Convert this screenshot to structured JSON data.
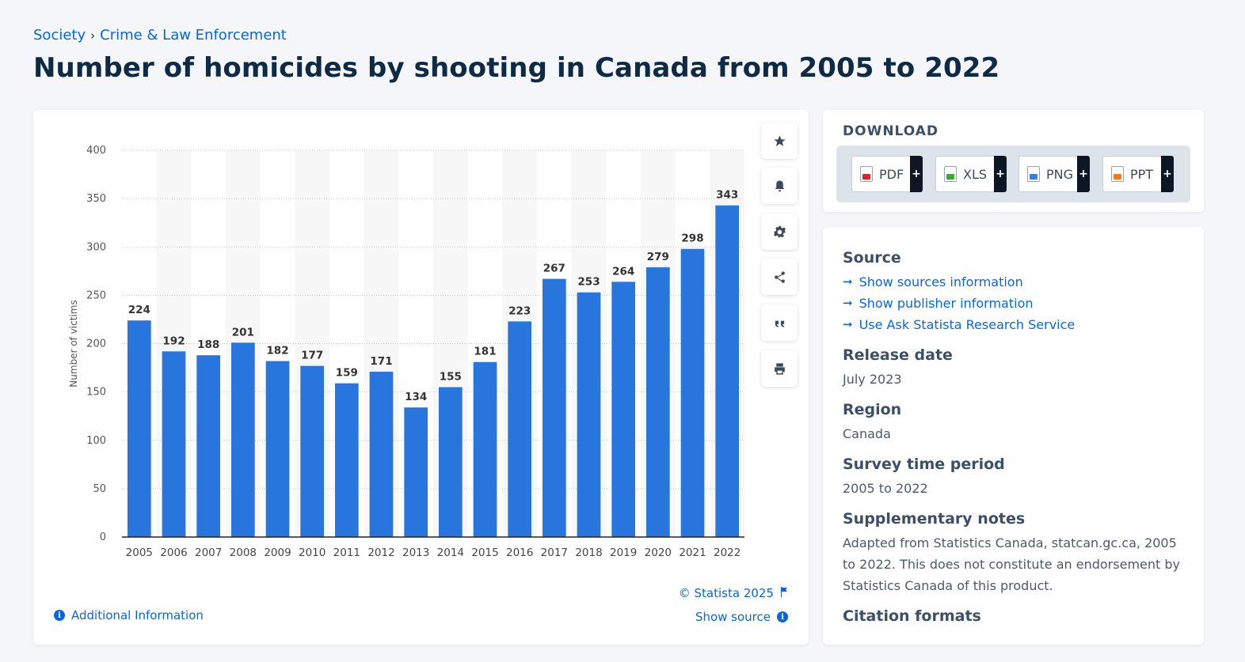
{
  "breadcrumb": {
    "items": [
      "Society",
      "Crime & Law Enforcement"
    ],
    "separator": "›"
  },
  "page_title": "Number of homicides by shooting in Canada from 2005 to 2022",
  "chart_data": {
    "type": "bar",
    "categories": [
      "2005",
      "2006",
      "2007",
      "2008",
      "2009",
      "2010",
      "2011",
      "2012",
      "2013",
      "2014",
      "2015",
      "2016",
      "2017",
      "2018",
      "2019",
      "2020",
      "2021",
      "2022"
    ],
    "values": [
      224,
      192,
      188,
      201,
      182,
      177,
      159,
      171,
      134,
      155,
      181,
      223,
      267,
      253,
      264,
      279,
      298,
      343
    ],
    "ylabel": "Number of victims",
    "xlabel": "",
    "ylim": [
      0,
      400
    ],
    "yticks": [
      0,
      50,
      100,
      150,
      200,
      250,
      300,
      350,
      400
    ],
    "grid": true,
    "color": "#2876dd"
  },
  "chart_footer": {
    "copyright": "© Statista 2025",
    "show_source": "Show source",
    "additional_info": "Additional Information"
  },
  "toolbar": [
    "star-icon",
    "bell-icon",
    "gear-icon",
    "share-icon",
    "quote-icon",
    "print-icon"
  ],
  "download": {
    "heading": "DOWNLOAD",
    "buttons": [
      {
        "label": "PDF",
        "plus": "+",
        "color": "#d9252a"
      },
      {
        "label": "XLS",
        "plus": "+",
        "color": "#3aa63c"
      },
      {
        "label": "PNG",
        "plus": "+",
        "color": "#3b7dd8"
      },
      {
        "label": "PPT",
        "plus": "+",
        "color": "#f07c1f"
      }
    ]
  },
  "info": {
    "source_heading": "Source",
    "source_links": [
      "Show sources information",
      "Show publisher information",
      "Use Ask Statista Research Service"
    ],
    "release_heading": "Release date",
    "release_value": "July 2023",
    "region_heading": "Region",
    "region_value": "Canada",
    "survey_heading": "Survey time period",
    "survey_value": "2005 to 2022",
    "notes_heading": "Supplementary notes",
    "notes_value": "Adapted from Statistics Canada, statcan.gc.ca, 2005 to 2022. This does not constitute an endorsement by Statistics Canada of this product.",
    "citation_heading": "Citation formats"
  },
  "colors": {
    "accent": "#0666e5",
    "bar": "#2876dd",
    "title": "#0f2a44"
  }
}
